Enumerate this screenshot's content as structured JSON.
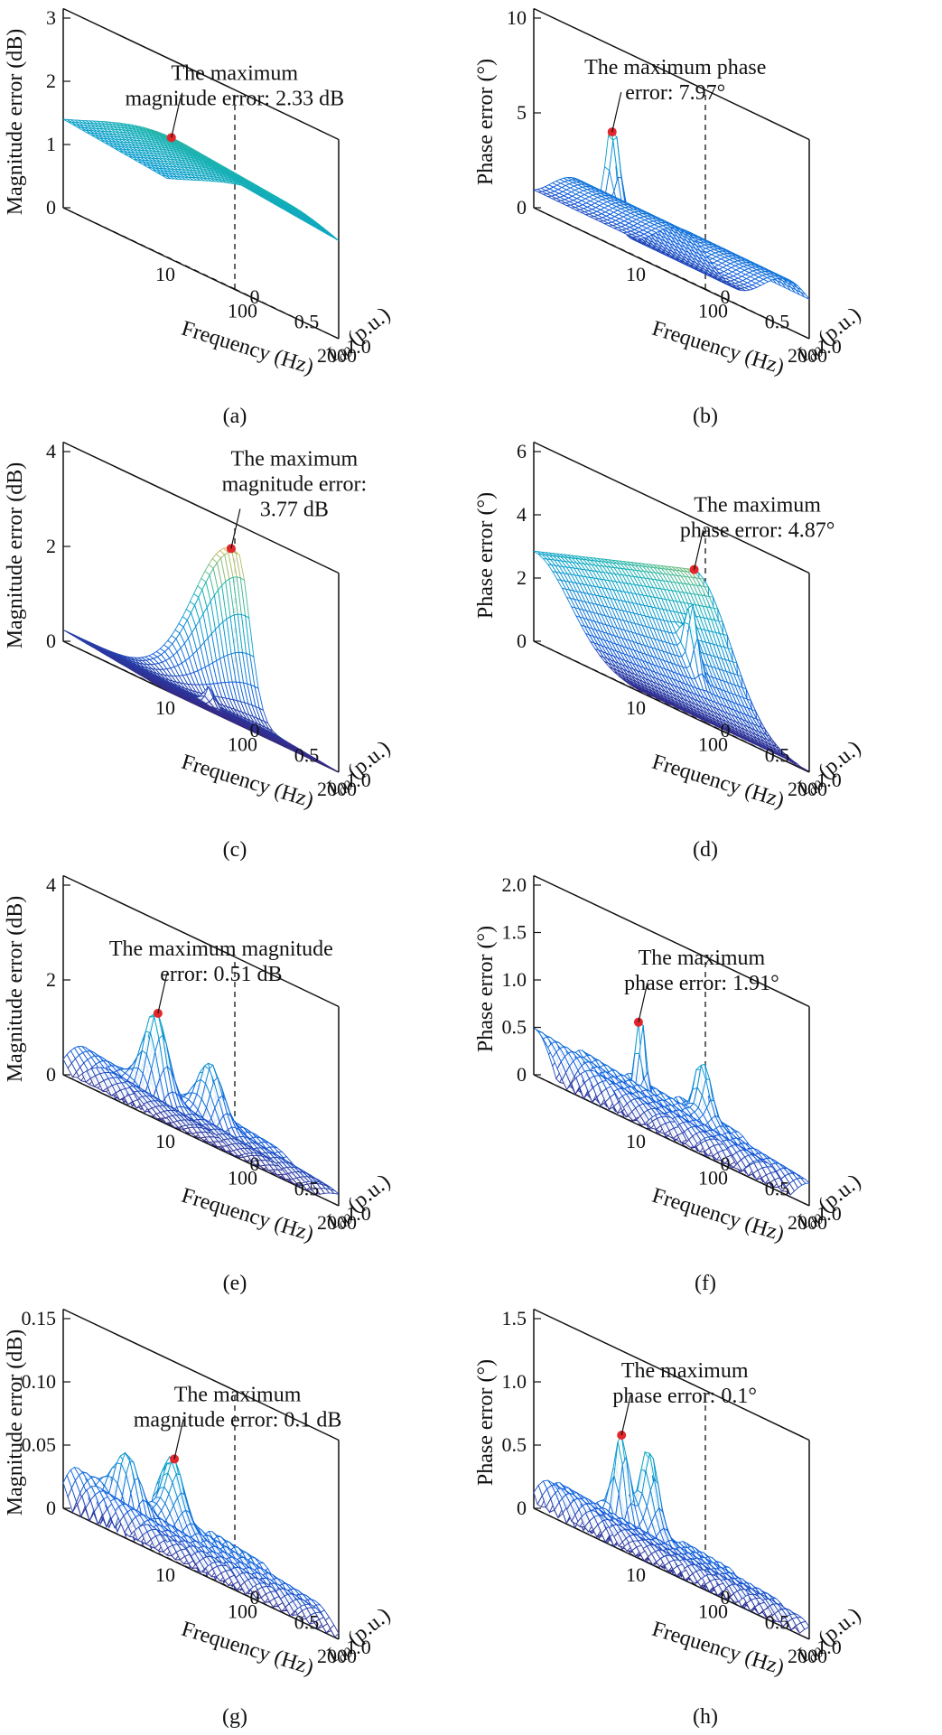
{
  "chart_data": [
    {
      "type": "surface",
      "panel_label": "(a)",
      "zlabel": "Magnitude error (dB)",
      "xlabel": "Frequency (Hz)",
      "ylabel_main": "I",
      "ylabel_sub": "d0",
      "ylabel_rest": " (p.u.)",
      "x_ticks": [
        "10",
        "100",
        "2000"
      ],
      "y_ticks": [
        "0",
        "0.5",
        "1.0"
      ],
      "z_ticks": [
        "0",
        "1",
        "2",
        "3"
      ],
      "z_max": 3,
      "annotation_lines": [
        "The maximum",
        "magnitude error: 2.33 dB"
      ],
      "max_value": 2.33,
      "max_unit": "dB"
    },
    {
      "type": "surface",
      "panel_label": "(b)",
      "zlabel": "Phase error (°)",
      "xlabel": "Frequency (Hz)",
      "ylabel_main": "I",
      "ylabel_sub": "d0",
      "ylabel_rest": " (p.u.)",
      "x_ticks": [
        "10",
        "100",
        "2000"
      ],
      "y_ticks": [
        "0",
        "0.5",
        "1.0"
      ],
      "z_ticks": [
        "0",
        "5",
        "10"
      ],
      "z_max": 10,
      "annotation_lines": [
        "The maximum phase",
        "error: 7.97°"
      ],
      "max_value": 7.97,
      "max_unit": "°"
    },
    {
      "type": "surface",
      "panel_label": "(c)",
      "zlabel": "Magnitude error (dB)",
      "xlabel": "Frequency (Hz)",
      "ylabel_main": "I",
      "ylabel_sub": "d0",
      "ylabel_rest": " (p.u.)",
      "x_ticks": [
        "10",
        "100",
        "2000"
      ],
      "y_ticks": [
        "0",
        "0.5",
        "1.0"
      ],
      "z_ticks": [
        "0",
        "2",
        "4"
      ],
      "z_max": 4,
      "annotation_lines": [
        "The maximum",
        "magnitude error:",
        "3.77 dB"
      ],
      "max_value": 3.77,
      "max_unit": "dB"
    },
    {
      "type": "surface",
      "panel_label": "(d)",
      "zlabel": "Phase error (°)",
      "xlabel": "Frequency (Hz)",
      "ylabel_main": "I",
      "ylabel_sub": "d0",
      "ylabel_rest": " (p.u.)",
      "x_ticks": [
        "10",
        "100",
        "2000"
      ],
      "y_ticks": [
        "0",
        "0.5",
        "1.0"
      ],
      "z_ticks": [
        "0",
        "2",
        "4",
        "6"
      ],
      "z_max": 6,
      "annotation_lines": [
        "The maximum",
        "phase error: 4.87°"
      ],
      "max_value": 4.87,
      "max_unit": "°"
    },
    {
      "type": "surface",
      "panel_label": "(e)",
      "zlabel": "Magnitude error (dB)",
      "xlabel": "Frequency (Hz)",
      "ylabel_main": "I",
      "ylabel_sub": "d0",
      "ylabel_rest": " (p.u.)",
      "x_ticks": [
        "10",
        "100",
        "2000"
      ],
      "y_ticks": [
        "0",
        "0.5",
        "1.0"
      ],
      "z_ticks": [
        "0",
        "2",
        "4"
      ],
      "z_max": 4,
      "annotation_lines": [
        "The maximum magnitude",
        "error: 0.51 dB"
      ],
      "max_value": 0.51,
      "max_unit": "dB"
    },
    {
      "type": "surface",
      "panel_label": "(f)",
      "zlabel": "Phase error (°)",
      "xlabel": "Frequency (Hz)",
      "ylabel_main": "I",
      "ylabel_sub": "d0",
      "ylabel_rest": " (p.u.)",
      "x_ticks": [
        "10",
        "100",
        "2000"
      ],
      "y_ticks": [
        "0",
        "0.5",
        "1.0"
      ],
      "z_ticks": [
        "0",
        "0.5",
        "1.0",
        "1.5",
        "2.0"
      ],
      "z_max": 2,
      "annotation_lines": [
        "The maximum",
        "phase error: 1.91°"
      ],
      "max_value": 1.91,
      "max_unit": "°"
    },
    {
      "type": "surface",
      "panel_label": "(g)",
      "zlabel": "Magnitude error (dB)",
      "xlabel": "Frequency (Hz)",
      "ylabel_main": "I",
      "ylabel_sub": "d0",
      "ylabel_rest": " (p.u.)",
      "x_ticks": [
        "10",
        "100",
        "2000"
      ],
      "y_ticks": [
        "0",
        "0.5",
        "1.0"
      ],
      "z_ticks": [
        "0",
        "0.05",
        "0.10",
        "0.15"
      ],
      "z_max": 0.15,
      "annotation_lines": [
        "The maximum",
        "magnitude error: 0.1 dB"
      ],
      "max_value": 0.1,
      "max_unit": "dB"
    },
    {
      "type": "surface",
      "panel_label": "(h)",
      "zlabel": "Phase error (°)",
      "xlabel": "Frequency (Hz)",
      "ylabel_main": "I",
      "ylabel_sub": "d0",
      "ylabel_rest": " (p.u.)",
      "x_ticks": [
        "10",
        "100",
        "2000"
      ],
      "y_ticks": [
        "0",
        "0.5",
        "1.0"
      ],
      "z_ticks": [
        "0",
        "0.5",
        "1.0",
        "1.5"
      ],
      "z_max": 1.5,
      "annotation_lines": [
        "The maximum",
        "phase error: 0.1°"
      ],
      "max_value": 0.1,
      "max_unit": "°"
    }
  ]
}
